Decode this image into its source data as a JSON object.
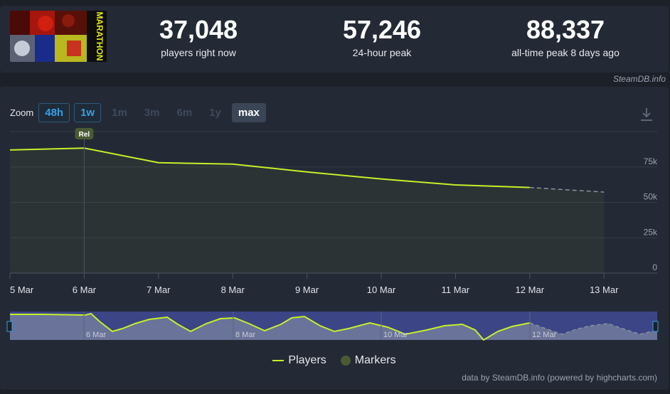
{
  "header": {
    "stats": [
      {
        "value": "37,048",
        "label": "players right now"
      },
      {
        "value": "57,246",
        "label": "24-hour peak"
      },
      {
        "value": "88,337",
        "label": "all-time peak 8 days ago"
      }
    ],
    "cover_title": "MARATHON"
  },
  "credit": "SteamDB.info",
  "zoom": {
    "label": "Zoom",
    "buttons": [
      {
        "label": "48h",
        "state": "available"
      },
      {
        "label": "1w",
        "state": "available"
      },
      {
        "label": "1m",
        "state": "disabled"
      },
      {
        "label": "3m",
        "state": "disabled"
      },
      {
        "label": "6m",
        "state": "disabled"
      },
      {
        "label": "1y",
        "state": "disabled"
      },
      {
        "label": "max",
        "state": "selected"
      }
    ]
  },
  "chart_data": {
    "type": "line",
    "x": [
      "5 Mar",
      "6 Mar",
      "7 Mar",
      "8 Mar",
      "9 Mar",
      "10 Mar",
      "11 Mar",
      "12 Mar"
    ],
    "x_ticks": [
      "5 Mar",
      "6 Mar",
      "7 Mar",
      "8 Mar",
      "9 Mar",
      "10 Mar",
      "11 Mar",
      "12 Mar",
      "13 Mar"
    ],
    "y_ticks": [
      "0",
      "25k",
      "50k",
      "75k"
    ],
    "ylim": [
      0,
      100000
    ],
    "series": [
      {
        "name": "Players",
        "values": [
          87000,
          88337,
          78000,
          77000,
          71500,
          66500,
          62300,
          60500
        ],
        "color": "#c6ef2a"
      }
    ],
    "projection": [
      {
        "x": "12 Mar",
        "y": 60500
      },
      {
        "x": "13 Mar",
        "y": 57246
      }
    ],
    "markers": [
      {
        "x": "6 Mar",
        "label": "Rel"
      }
    ],
    "navigator_ticks": [
      "6 Mar",
      "8 Mar",
      "10 Mar",
      "12 Mar"
    ],
    "legend": [
      {
        "label": "Players",
        "color": "#c6ef2a"
      },
      {
        "label": "Markers",
        "color": "#4a5a34"
      }
    ],
    "grid": true,
    "legend_position": "bottom-center"
  },
  "footer": {
    "powered": "data by SteamDB.info (powered by highcharts.com)"
  }
}
